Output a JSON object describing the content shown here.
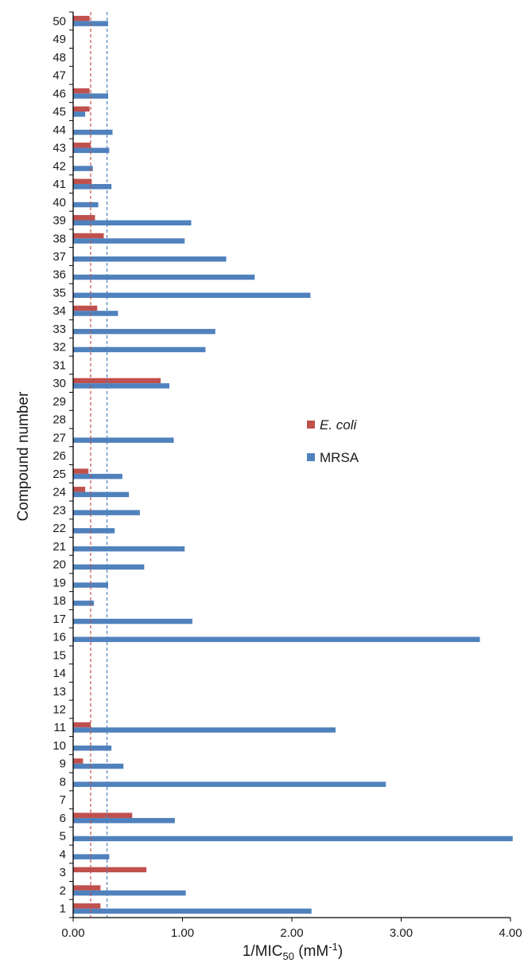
{
  "chart_data": {
    "type": "bar",
    "orientation": "horizontal",
    "ylabel": "Compound number",
    "xlabel_main": "1/MIC",
    "xlabel_sub": "50",
    "xlabel_unit_open": " (mM",
    "xlabel_unit_sup": "-1",
    "xlabel_unit_close": ")",
    "xlim": [
      0,
      4
    ],
    "xticks": [
      "0.00",
      "1.00",
      "2.00",
      "3.00",
      "4.00"
    ],
    "categories": [
      "1",
      "2",
      "3",
      "4",
      "5",
      "6",
      "7",
      "8",
      "9",
      "10",
      "11",
      "12",
      "13",
      "14",
      "15",
      "16",
      "17",
      "18",
      "19",
      "20",
      "21",
      "22",
      "23",
      "24",
      "25",
      "26",
      "27",
      "28",
      "29",
      "30",
      "31",
      "32",
      "33",
      "34",
      "35",
      "36",
      "37",
      "38",
      "39",
      "40",
      "41",
      "42",
      "43",
      "44",
      "45",
      "46",
      "47",
      "48",
      "49",
      "50"
    ],
    "series": [
      {
        "name": "E. coli",
        "color": "#c0504d",
        "values": [
          0.25,
          0.25,
          0.67,
          0,
          0,
          0.54,
          0,
          0,
          0.09,
          0,
          0.16,
          0,
          0,
          0,
          0,
          0,
          0,
          0,
          0,
          0,
          0,
          0,
          0,
          0.11,
          0.14,
          0,
          0,
          0,
          0,
          0.8,
          0,
          0,
          0,
          0.22,
          0,
          0,
          0,
          0.28,
          0.2,
          0,
          0.17,
          0,
          0.16,
          0,
          0.15,
          0.15,
          0,
          0,
          0,
          0.15
        ]
      },
      {
        "name": "MRSA",
        "color": "#4f81bd",
        "values": [
          2.18,
          1.03,
          0,
          0.33,
          4.02,
          0.93,
          0,
          2.86,
          0.46,
          0.35,
          2.4,
          0,
          0,
          0,
          0,
          3.72,
          1.09,
          0.19,
          0.32,
          0.65,
          1.02,
          0.38,
          0.61,
          0.51,
          0.45,
          0,
          0.92,
          0,
          0,
          0.88,
          0,
          1.21,
          1.3,
          0.41,
          2.17,
          1.66,
          1.4,
          1.02,
          1.08,
          0.23,
          0.35,
          0.18,
          0.33,
          0.36,
          0.11,
          0.32,
          0,
          0,
          0,
          0.32
        ]
      }
    ],
    "reference_lines": [
      {
        "series": "E. coli",
        "value": 0.16,
        "color": "#c0504d",
        "style": "dashed"
      },
      {
        "series": "MRSA",
        "value": 0.31,
        "color": "#4f81bd",
        "style": "dashed"
      }
    ],
    "legend": {
      "position": "center-right",
      "entries": [
        "E. coli",
        "MRSA"
      ]
    },
    "grid": false
  }
}
